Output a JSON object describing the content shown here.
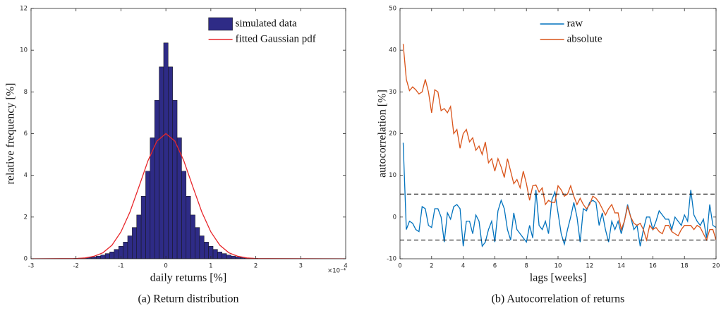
{
  "chart_data": [
    {
      "type": "histogram",
      "caption": "(a)  Return distribution",
      "xlabel": "daily returns [%]",
      "ylabel": "relative frequency [%]",
      "x_multiplier": "×10⁻⁴",
      "xlim": [
        -3,
        4
      ],
      "xticks": [
        -3,
        -2,
        -1,
        0,
        1,
        2,
        3,
        4
      ],
      "ylim": [
        0,
        12
      ],
      "yticks": [
        0,
        2,
        4,
        6,
        8,
        10,
        12
      ],
      "legend": "northeast",
      "series": [
        {
          "name": "simulated data",
          "type": "histogram",
          "color": "#2e2b86",
          "bins": [
            -2.05,
            -1.95,
            -1.85,
            -1.75,
            -1.65,
            -1.55,
            -1.45,
            -1.35,
            -1.25,
            -1.15,
            -1.05,
            -0.95,
            -0.85,
            -0.75,
            -0.65,
            -0.55,
            -0.45,
            -0.35,
            -0.25,
            -0.15,
            -0.05,
            0.05,
            0.15,
            0.25,
            0.35,
            0.45,
            0.55,
            0.65,
            0.75,
            0.85,
            0.95,
            1.05,
            1.15,
            1.25,
            1.35,
            1.45,
            1.55,
            1.65,
            1.75,
            1.85,
            1.95,
            2.05
          ],
          "values": [
            0.02,
            0.03,
            0.04,
            0.06,
            0.09,
            0.13,
            0.18,
            0.25,
            0.33,
            0.45,
            0.6,
            0.8,
            1.1,
            1.5,
            2.1,
            3.0,
            4.2,
            5.8,
            7.6,
            9.2,
            10.35,
            9.2,
            7.6,
            5.8,
            4.2,
            3.0,
            2.1,
            1.5,
            1.1,
            0.8,
            0.6,
            0.45,
            0.33,
            0.25,
            0.18,
            0.13,
            0.09,
            0.06,
            0.04,
            0.03,
            0.02
          ]
        },
        {
          "name": "fitted Gaussian pdf",
          "type": "line",
          "color": "#e8262a",
          "x": [
            -3,
            -2,
            -1.8,
            -1.6,
            -1.4,
            -1.2,
            -1,
            -0.8,
            -0.6,
            -0.4,
            -0.2,
            0,
            0.2,
            0.4,
            0.6,
            0.8,
            1,
            1.2,
            1.4,
            1.6,
            1.8,
            2,
            4
          ],
          "values": [
            0,
            0.01,
            0.04,
            0.12,
            0.29,
            0.65,
            1.29,
            2.24,
            3.45,
            4.69,
            5.64,
            6,
            5.64,
            4.69,
            3.45,
            2.24,
            1.29,
            0.65,
            0.29,
            0.12,
            0.04,
            0.01,
            0
          ]
        }
      ]
    },
    {
      "type": "line",
      "caption": "(b)  Autocorrelation of returns",
      "xlabel": "lags [weeks]",
      "ylabel": "autocorrelation [%]",
      "xlim": [
        0,
        20
      ],
      "xticks": [
        0,
        2,
        4,
        6,
        8,
        10,
        12,
        14,
        16,
        18,
        20
      ],
      "ylim": [
        -10,
        50
      ],
      "yticks": [
        -10,
        0,
        10,
        20,
        30,
        40,
        50
      ],
      "legend": "north",
      "reference_lines": [
        5.5,
        -5.5
      ],
      "x": [
        0.2,
        0.4,
        0.6,
        0.8,
        1,
        1.2,
        1.4,
        1.6,
        1.8,
        2,
        2.2,
        2.4,
        2.6,
        2.8,
        3,
        3.2,
        3.4,
        3.6,
        3.8,
        4,
        4.2,
        4.4,
        4.6,
        4.8,
        5,
        5.2,
        5.4,
        5.6,
        5.8,
        6,
        6.2,
        6.4,
        6.6,
        6.8,
        7,
        7.2,
        7.4,
        7.6,
        7.8,
        8,
        8.2,
        8.4,
        8.6,
        8.8,
        9,
        9.2,
        9.4,
        9.6,
        9.8,
        10,
        10.2,
        10.4,
        10.6,
        10.8,
        11,
        11.2,
        11.4,
        11.6,
        11.8,
        12,
        12.2,
        12.4,
        12.6,
        12.8,
        13,
        13.2,
        13.4,
        13.6,
        13.8,
        14,
        14.2,
        14.4,
        14.6,
        14.8,
        15,
        15.2,
        15.4,
        15.6,
        15.8,
        16,
        16.2,
        16.4,
        16.6,
        16.8,
        17,
        17.2,
        17.4,
        17.6,
        17.8,
        18,
        18.2,
        18.4,
        18.6,
        18.8,
        19,
        19.2,
        19.4,
        19.6,
        19.8,
        20
      ],
      "series": [
        {
          "name": "raw",
          "color": "#0072bd",
          "values": [
            17.8,
            -3,
            -1,
            -1.5,
            -3,
            -3.5,
            2.5,
            2,
            -2,
            -2.5,
            2,
            2,
            0,
            -6,
            1,
            -0.5,
            2.5,
            3,
            2,
            -7,
            -1,
            -1,
            -4,
            0.5,
            -1,
            -7,
            -6,
            -3,
            -1,
            -6,
            1.5,
            4,
            2,
            -3,
            -5.5,
            1,
            -3,
            -4,
            -5,
            -6,
            -2,
            -5,
            6.5,
            -2,
            -3,
            -1,
            -4,
            4,
            6,
            1,
            -4,
            -6.5,
            -3,
            0,
            3.5,
            0,
            -6,
            2,
            1.5,
            3.5,
            4,
            3.5,
            -2,
            1,
            -3,
            -6,
            -1,
            -3,
            -1,
            -4,
            -1,
            3,
            0,
            -3,
            -2,
            -7,
            -3,
            0,
            0,
            -3,
            -1,
            1.5,
            0.5,
            -0.5,
            -0.5,
            -3,
            0,
            -1,
            -2,
            0.5,
            -1,
            6.5,
            0.5,
            -1,
            -2,
            -0.5,
            -5,
            3,
            -2,
            -2.5
          ]
        },
        {
          "name": "absolute",
          "color": "#d95319",
          "values": [
            41.5,
            33,
            30.3,
            31.2,
            30.5,
            29.5,
            30,
            33,
            30,
            25,
            30.5,
            30,
            25.5,
            26,
            25,
            26.5,
            20,
            21,
            16.5,
            20,
            21,
            18,
            19,
            16,
            17,
            15,
            18,
            13,
            14,
            11,
            14,
            12,
            9.5,
            14,
            11,
            8,
            9,
            7,
            11,
            8,
            4,
            7.5,
            7.7,
            6,
            7,
            3,
            4,
            3.5,
            3.5,
            7.5,
            6.5,
            5,
            5.5,
            7.5,
            5,
            3,
            4.5,
            3,
            2,
            3,
            5,
            4.5,
            3.5,
            2,
            0.5,
            2,
            3,
            1,
            1,
            -3,
            -1,
            2.5,
            0,
            -1.5,
            -2,
            -1.5,
            -3,
            -5.5,
            -2,
            -3,
            -2.5,
            -3.5,
            -4,
            -2,
            -2,
            -3.5,
            -4,
            -4.5,
            -3,
            -2,
            -2,
            -2,
            -3,
            -2,
            -2.5,
            -4,
            -5.5,
            -3,
            -3,
            -5.5
          ]
        }
      ]
    }
  ]
}
